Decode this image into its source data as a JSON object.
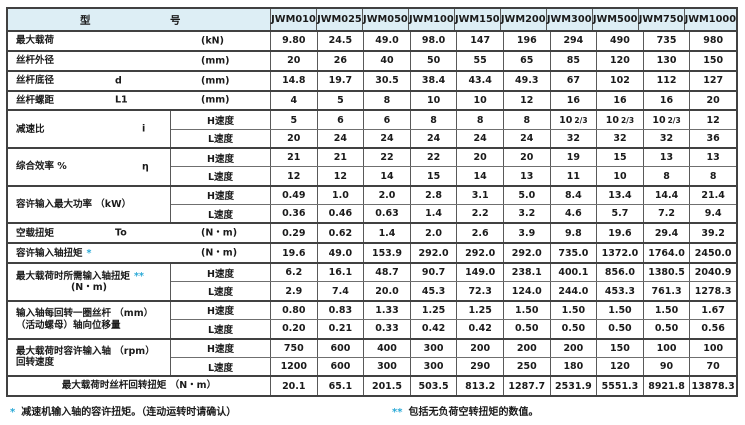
{
  "colors": {
    "header_bg": "#ddeef5",
    "asterisk": "#2aa9d6",
    "border_dark": "#414141",
    "border_light": "#6f6f6f"
  },
  "header": {
    "type_label": "型",
    "number_label": "号",
    "models": [
      "JWM010",
      "JWM025",
      "JWM050",
      "JWM100",
      "JWM150",
      "JWM200",
      "JWM300",
      "JWM500",
      "JWM750",
      "JWM1000"
    ]
  },
  "groups": [
    {
      "label": "最大载荷",
      "symbol": "",
      "unit": "(kN)",
      "layout": "single",
      "rows": [
        {
          "speed": "",
          "values": [
            "9.80",
            "24.5",
            "49.0",
            "98.0",
            "147",
            "196",
            "294",
            "490",
            "735",
            "980"
          ]
        }
      ]
    },
    {
      "label": "丝杆外径",
      "symbol": "",
      "unit": "(mm)",
      "layout": "single",
      "rows": [
        {
          "speed": "",
          "values": [
            "20",
            "26",
            "40",
            "50",
            "55",
            "65",
            "85",
            "120",
            "130",
            "150"
          ]
        }
      ]
    },
    {
      "label": "丝杆底径",
      "symbol": "d",
      "unit": "(mm)",
      "layout": "single",
      "rows": [
        {
          "speed": "",
          "values": [
            "14.8",
            "19.7",
            "30.5",
            "38.4",
            "43.4",
            "49.3",
            "67",
            "102",
            "112",
            "127"
          ]
        }
      ]
    },
    {
      "label": "丝杆螺距",
      "symbol": "L1",
      "unit": "(mm)",
      "layout": "single",
      "rows": [
        {
          "speed": "",
          "values": [
            "4",
            "5",
            "8",
            "10",
            "10",
            "12",
            "16",
            "16",
            "16",
            "20"
          ]
        }
      ]
    },
    {
      "label": "减速比",
      "symbol": "i",
      "unit": "",
      "layout": "dbl",
      "rows": [
        {
          "speed": "H速度",
          "values": [
            "5",
            "6",
            "6",
            "8",
            "8",
            "8",
            "10 2/3",
            "10 2/3",
            "10 2/3",
            "12"
          ]
        },
        {
          "speed": "L速度",
          "values": [
            "20",
            "24",
            "24",
            "24",
            "24",
            "24",
            "32",
            "32",
            "32",
            "36"
          ]
        }
      ]
    },
    {
      "label": "综合效率  %",
      "symbol": "η",
      "unit": "",
      "layout": "dbl",
      "rows": [
        {
          "speed": "H速度",
          "values": [
            "21",
            "21",
            "22",
            "22",
            "20",
            "20",
            "19",
            "15",
            "13",
            "13"
          ]
        },
        {
          "speed": "L速度",
          "values": [
            "12",
            "12",
            "14",
            "15",
            "14",
            "13",
            "11",
            "10",
            "8",
            "8"
          ]
        }
      ]
    },
    {
      "label": "容许输入最大功率 （kW）",
      "symbol": "",
      "unit": "",
      "layout": "dbl",
      "rows": [
        {
          "speed": "H速度",
          "values": [
            "0.49",
            "1.0",
            "2.0",
            "2.8",
            "3.1",
            "5.0",
            "8.4",
            "13.4",
            "14.4",
            "21.4"
          ]
        },
        {
          "speed": "L速度",
          "values": [
            "0.36",
            "0.46",
            "0.63",
            "1.4",
            "2.2",
            "3.2",
            "4.6",
            "5.7",
            "7.2",
            "9.4"
          ]
        }
      ]
    },
    {
      "label": "空载扭矩",
      "symbol": "To",
      "unit": "(N・m)",
      "layout": "single",
      "rows": [
        {
          "speed": "",
          "values": [
            "0.29",
            "0.62",
            "1.4",
            "2.0",
            "2.6",
            "3.9",
            "9.8",
            "19.6",
            "29.4",
            "39.2"
          ]
        }
      ]
    },
    {
      "label": "容许输入轴扭矩",
      "asterisk": "*",
      "symbol": "",
      "unit": "(N・m)",
      "layout": "single",
      "rows": [
        {
          "speed": "",
          "values": [
            "19.6",
            "49.0",
            "153.9",
            "292.0",
            "292.0",
            "292.0",
            "735.0",
            "1372.0",
            "1764.0",
            "2450.0"
          ]
        }
      ]
    },
    {
      "label": "最大载荷时所需输入轴扭矩",
      "asterisk": "**",
      "label2": "(N・m)",
      "label2_center": true,
      "symbol": "",
      "unit": "",
      "layout": "dbl",
      "rows": [
        {
          "speed": "H速度",
          "values": [
            "6.2",
            "16.1",
            "48.7",
            "90.7",
            "149.0",
            "238.1",
            "400.1",
            "856.0",
            "1380.5",
            "2040.9"
          ]
        },
        {
          "speed": "L速度",
          "values": [
            "2.9",
            "7.4",
            "20.0",
            "45.3",
            "72.3",
            "124.0",
            "244.0",
            "453.3",
            "761.3",
            "1278.3"
          ]
        }
      ]
    },
    {
      "label": "输入轴每回转一圈丝杆 （mm）",
      "label2": "（活动螺母）轴向位移量",
      "symbol": "",
      "unit": "",
      "layout": "dbl",
      "rows": [
        {
          "speed": "H速度",
          "values": [
            "0.80",
            "0.83",
            "1.33",
            "1.25",
            "1.25",
            "1.50",
            "1.50",
            "1.50",
            "1.50",
            "1.67"
          ]
        },
        {
          "speed": "L速度",
          "values": [
            "0.20",
            "0.21",
            "0.33",
            "0.42",
            "0.42",
            "0.50",
            "0.50",
            "0.50",
            "0.50",
            "0.56"
          ]
        }
      ]
    },
    {
      "label": "最大载荷时容许输入轴 （rpm）",
      "label2": "回转速度",
      "symbol": "",
      "unit": "",
      "layout": "dbl",
      "rows": [
        {
          "speed": "H速度",
          "values": [
            "750",
            "600",
            "400",
            "300",
            "200",
            "200",
            "200",
            "150",
            "100",
            "100"
          ]
        },
        {
          "speed": "L速度",
          "values": [
            "1200",
            "600",
            "300",
            "300",
            "290",
            "250",
            "180",
            "120",
            "90",
            "70"
          ]
        }
      ]
    },
    {
      "label": "最大载荷时丝杆回转扭矩 （N・m）",
      "symbol": "",
      "unit": "",
      "layout": "single",
      "centered": true,
      "rows": [
        {
          "speed": "",
          "values": [
            "20.1",
            "65.1",
            "201.5",
            "503.5",
            "813.2",
            "1287.7",
            "2531.9",
            "5551.3",
            "8921.8",
            "13878.3"
          ]
        }
      ]
    }
  ],
  "footnotes": [
    {
      "marker": "*",
      "text": "减速机输入轴的容许扭矩。（连动运转时请确认）"
    },
    {
      "marker": "**",
      "text": "包括无负荷空转扭矩的数值。"
    }
  ]
}
